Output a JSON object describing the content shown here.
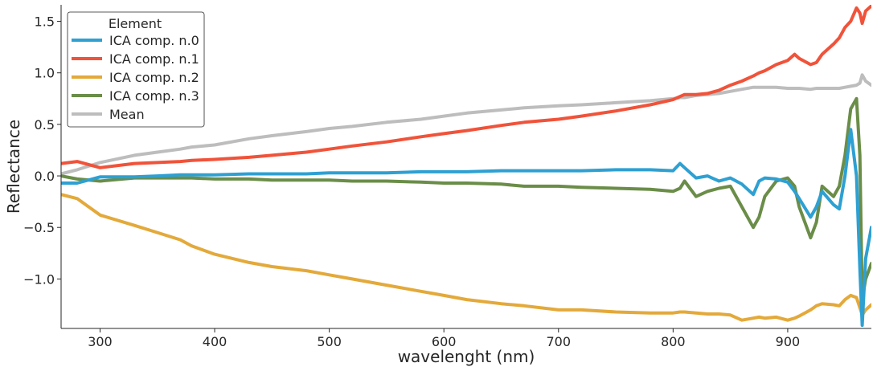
{
  "chart_data": {
    "type": "line",
    "xlabel": "wavelenght (nm)",
    "ylabel": "Reflectance",
    "xlim": [
      266,
      973
    ],
    "ylim": [
      -1.48,
      1.66
    ],
    "x_ticks": [
      300,
      400,
      500,
      600,
      700,
      800,
      900
    ],
    "y_ticks": [
      -1.0,
      -0.5,
      0.0,
      0.5,
      1.0,
      1.5
    ],
    "y_tick_labels": [
      "−1.0",
      "−0.5",
      "0.0",
      "0.5",
      "1.0",
      "1.5"
    ],
    "grid": false,
    "legend": {
      "title": "Element",
      "placement": "top-left"
    },
    "x": [
      266,
      280,
      300,
      330,
      350,
      370,
      380,
      400,
      430,
      450,
      480,
      500,
      520,
      550,
      580,
      600,
      620,
      650,
      670,
      700,
      720,
      750,
      780,
      800,
      806,
      810,
      820,
      830,
      840,
      850,
      860,
      870,
      875,
      880,
      890,
      900,
      906,
      910,
      920,
      925,
      930,
      940,
      945,
      950,
      955,
      960,
      963,
      965,
      968,
      973
    ],
    "series": [
      {
        "name": "ICA comp. n.0",
        "color": "#2ea0d2",
        "values": [
          -0.07,
          -0.07,
          -0.01,
          -0.01,
          0.0,
          0.01,
          0.01,
          0.01,
          0.02,
          0.02,
          0.02,
          0.03,
          0.03,
          0.03,
          0.04,
          0.04,
          0.04,
          0.05,
          0.05,
          0.05,
          0.05,
          0.06,
          0.06,
          0.05,
          0.12,
          0.08,
          -0.02,
          0.0,
          -0.05,
          -0.02,
          -0.08,
          -0.18,
          -0.05,
          -0.02,
          -0.03,
          -0.06,
          -0.15,
          -0.22,
          -0.4,
          -0.3,
          -0.15,
          -0.28,
          -0.32,
          0.0,
          0.45,
          0.0,
          -0.9,
          -1.45,
          -0.8,
          -0.5
        ]
      },
      {
        "name": "ICA comp. n.1",
        "color": "#f0533a",
        "values": [
          0.12,
          0.14,
          0.08,
          0.12,
          0.13,
          0.14,
          0.15,
          0.16,
          0.18,
          0.2,
          0.23,
          0.26,
          0.29,
          0.33,
          0.38,
          0.41,
          0.44,
          0.49,
          0.52,
          0.55,
          0.58,
          0.63,
          0.69,
          0.74,
          0.77,
          0.79,
          0.79,
          0.8,
          0.83,
          0.88,
          0.92,
          0.97,
          1.0,
          1.02,
          1.08,
          1.12,
          1.18,
          1.14,
          1.08,
          1.1,
          1.18,
          1.28,
          1.34,
          1.44,
          1.5,
          1.63,
          1.58,
          1.48,
          1.6,
          1.65
        ]
      },
      {
        "name": "ICA comp. n.2",
        "color": "#e3a93a",
        "values": [
          -0.18,
          -0.22,
          -0.38,
          -0.48,
          -0.55,
          -0.62,
          -0.68,
          -0.76,
          -0.84,
          -0.88,
          -0.92,
          -0.96,
          -1.0,
          -1.06,
          -1.12,
          -1.16,
          -1.2,
          -1.24,
          -1.26,
          -1.3,
          -1.3,
          -1.32,
          -1.33,
          -1.33,
          -1.32,
          -1.32,
          -1.33,
          -1.34,
          -1.34,
          -1.35,
          -1.4,
          -1.38,
          -1.37,
          -1.38,
          -1.37,
          -1.4,
          -1.38,
          -1.36,
          -1.3,
          -1.26,
          -1.24,
          -1.25,
          -1.26,
          -1.2,
          -1.16,
          -1.18,
          -1.28,
          -1.35,
          -1.3,
          -1.25
        ]
      },
      {
        "name": "ICA comp. n.3",
        "color": "#6a8d48",
        "values": [
          0.0,
          -0.03,
          -0.05,
          -0.02,
          -0.02,
          -0.02,
          -0.02,
          -0.03,
          -0.03,
          -0.04,
          -0.04,
          -0.04,
          -0.05,
          -0.05,
          -0.06,
          -0.07,
          -0.07,
          -0.08,
          -0.1,
          -0.1,
          -0.11,
          -0.12,
          -0.13,
          -0.15,
          -0.12,
          -0.05,
          -0.2,
          -0.15,
          -0.12,
          -0.1,
          -0.3,
          -0.5,
          -0.4,
          -0.2,
          -0.05,
          -0.02,
          -0.1,
          -0.3,
          -0.6,
          -0.45,
          -0.1,
          -0.2,
          -0.1,
          0.2,
          0.65,
          0.75,
          0.2,
          -1.2,
          -1.0,
          -0.85
        ]
      },
      {
        "name": "Mean",
        "color": "#bdbdbd",
        "values": [
          0.02,
          0.06,
          0.13,
          0.2,
          0.23,
          0.26,
          0.28,
          0.3,
          0.36,
          0.39,
          0.43,
          0.46,
          0.48,
          0.52,
          0.55,
          0.58,
          0.61,
          0.64,
          0.66,
          0.68,
          0.69,
          0.71,
          0.73,
          0.75,
          0.76,
          0.76,
          0.78,
          0.79,
          0.8,
          0.82,
          0.84,
          0.86,
          0.86,
          0.86,
          0.86,
          0.85,
          0.85,
          0.85,
          0.84,
          0.85,
          0.85,
          0.85,
          0.85,
          0.86,
          0.87,
          0.88,
          0.9,
          0.98,
          0.92,
          0.88
        ]
      }
    ]
  }
}
